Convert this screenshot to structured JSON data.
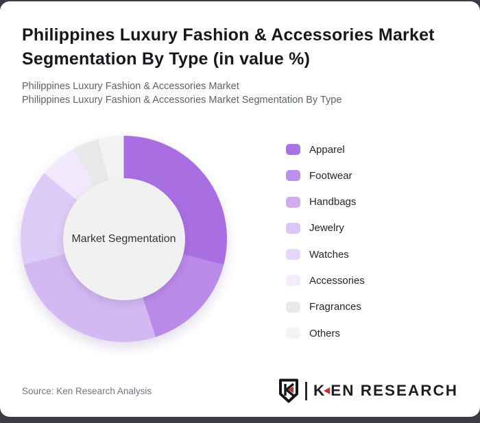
{
  "card": {
    "title": "Philippines Luxury Fashion & Accessories Market Segmentation By Type (in value %)",
    "subtitle_line1": "Philippines Luxury Fashion & Accessories Market",
    "subtitle_line2": "Philippines Luxury Fashion & Accessories Market Segmentation By Type"
  },
  "chart_data": {
    "type": "pie",
    "variant": "donut",
    "title": "Philippines Luxury Fashion & Accessories Market Segmentation By Type (in value %)",
    "center_label": "Market Segmentation",
    "unit": "% of value (estimated from arc angles; no data labels shown)",
    "start_angle_deg": 0,
    "direction": "clockwise",
    "legend_position": "right",
    "categories": [
      "Apparel",
      "Footwear",
      "Handbags",
      "Jewelry",
      "Watches",
      "Accessories",
      "Fragrances",
      "Others"
    ],
    "values": [
      29,
      16,
      13,
      13,
      15,
      6,
      4,
      4
    ],
    "slice_colors": [
      "#a96fe2",
      "#ba8ae9",
      "#d3b8f2",
      "#d3b8f2",
      "#ddcbf7",
      "#f0e9fb",
      "#e8e8e9",
      "#f3f3f1"
    ],
    "legend_colors": [
      "#ab72e3",
      "#bb8fea",
      "#cfadf0",
      "#dcc6f6",
      "#e6d7f9",
      "#f2ecfc",
      "#e9e9eb",
      "#f4f4f4"
    ]
  },
  "footer": {
    "source_text": "Source: Ken Research Analysis",
    "logo": {
      "brand_first_letter": "K",
      "brand_rest": "EN RESEARCH",
      "accent_color": "#c5312d"
    }
  }
}
